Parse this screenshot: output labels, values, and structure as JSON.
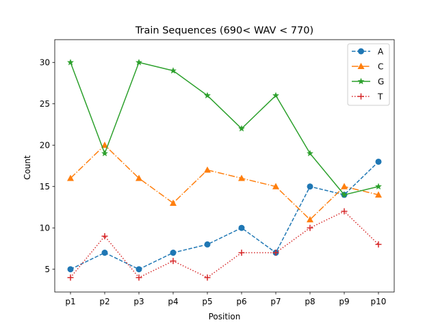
{
  "chart_data": {
    "type": "line",
    "title": "Train Sequences (690< WAV < 770)",
    "xlabel": "Position",
    "ylabel": "Count",
    "categories": [
      "p1",
      "p2",
      "p3",
      "p4",
      "p5",
      "p6",
      "p7",
      "p8",
      "p9",
      "p10"
    ],
    "ylim": [
      2.25,
      32.75
    ],
    "yticks": [
      5,
      10,
      15,
      20,
      25,
      30
    ],
    "grid": false,
    "legend_position": "top-right",
    "series": [
      {
        "name": "A",
        "values": [
          5,
          7,
          5,
          7,
          8,
          10,
          7,
          15,
          14,
          18
        ],
        "color": "#1f77b4",
        "linestyle": "dashed",
        "marker": "circle"
      },
      {
        "name": "C",
        "values": [
          16,
          20,
          16,
          13,
          17,
          16,
          15,
          11,
          15,
          14
        ],
        "color": "#ff7f0e",
        "linestyle": "dashdot",
        "marker": "triangle"
      },
      {
        "name": "G",
        "values": [
          30,
          19,
          30,
          29,
          26,
          22,
          26,
          19,
          14,
          15
        ],
        "color": "#2ca02c",
        "linestyle": "solid",
        "marker": "star"
      },
      {
        "name": "T",
        "values": [
          4,
          9,
          4,
          6,
          4,
          7,
          7,
          10,
          12,
          8
        ],
        "color": "#d62728",
        "linestyle": "dotted",
        "marker": "plus"
      }
    ]
  }
}
